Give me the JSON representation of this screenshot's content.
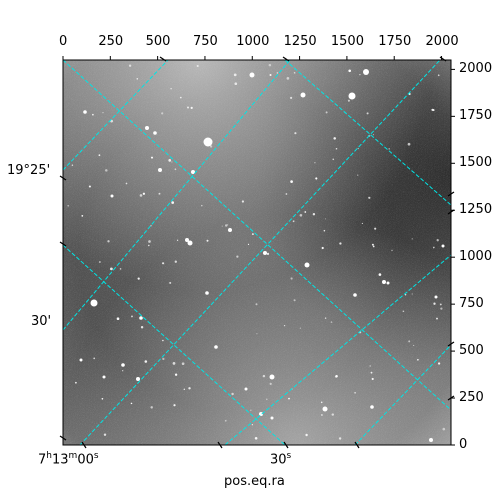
{
  "figure": {
    "xlabel": "pos.eq.ra",
    "top_axis_ticks": [
      "0",
      "250",
      "500",
      "750",
      "1000",
      "1250",
      "1500",
      "1750",
      "2000"
    ],
    "right_axis_ticks": [
      "0",
      "250",
      "500",
      "750",
      "1000",
      "1250",
      "1500",
      "1750",
      "2000"
    ],
    "dec_labels": [
      "19°25'",
      "30'"
    ],
    "ra_labels": {
      "first_h": "7",
      "first_h_unit": "h",
      "first_m": "13",
      "first_m_unit": "m",
      "first_s": "00",
      "first_s_unit": "s",
      "second_s": "30",
      "second_s_unit": "s"
    },
    "grid_color": "#00e5e5"
  }
}
